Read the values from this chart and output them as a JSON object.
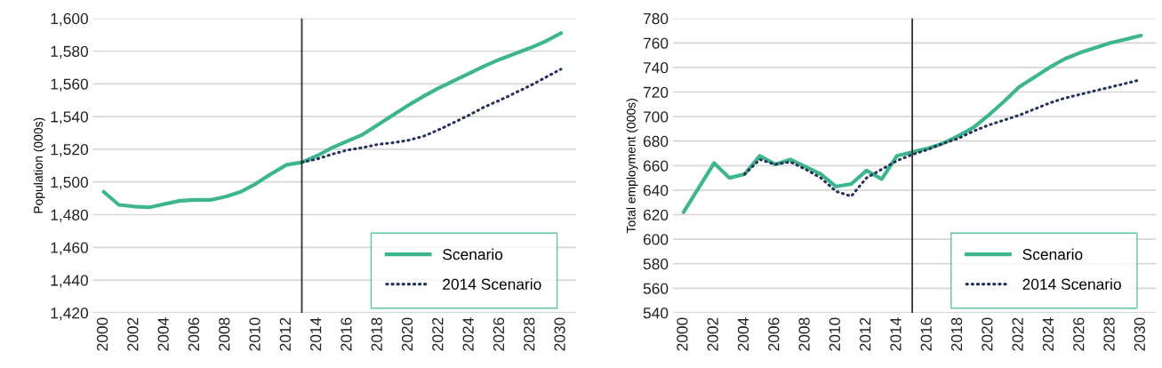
{
  "chart_data": [
    {
      "type": "line",
      "ylabel": "Population (000s)",
      "x": [
        2000,
        2001,
        2002,
        2003,
        2004,
        2005,
        2006,
        2007,
        2008,
        2009,
        2010,
        2011,
        2012,
        2013,
        2014,
        2015,
        2016,
        2017,
        2018,
        2019,
        2020,
        2021,
        2022,
        2023,
        2024,
        2025,
        2026,
        2027,
        2028,
        2029,
        2030
      ],
      "series": [
        {
          "name": "Scenario",
          "color": "#3db58f",
          "line_style": "solid",
          "values": [
            1494,
            1486,
            1485,
            1484.5,
            1486.5,
            1488.5,
            1489,
            1489,
            1491,
            1494,
            1499,
            1505,
            1510.5,
            1512,
            1516,
            1521,
            1525,
            1529,
            1535,
            1541,
            1547,
            1552.5,
            1557.5,
            1562,
            1566.5,
            1571,
            1575,
            1578.5,
            1582,
            1586,
            1591
          ]
        },
        {
          "name": "2014 Scenario",
          "color": "#27345a",
          "line_style": "dotted",
          "values": [
            null,
            null,
            null,
            null,
            null,
            null,
            null,
            null,
            null,
            null,
            null,
            null,
            null,
            1512,
            1514,
            1517,
            1519.5,
            1521,
            1523,
            1524,
            1525.5,
            1528,
            1532,
            1536.5,
            1541,
            1546,
            1550,
            1554.5,
            1559,
            1564,
            1569
          ]
        }
      ],
      "xlim": [
        1999.3,
        2031
      ],
      "xticks": [
        2000,
        2002,
        2004,
        2006,
        2008,
        2010,
        2012,
        2014,
        2016,
        2018,
        2020,
        2022,
        2024,
        2026,
        2028,
        2030
      ],
      "ylim": [
        1420,
        1600
      ],
      "yticks": [
        {
          "value": 1420,
          "label": "1,420"
        },
        {
          "value": 1440,
          "label": "1,440"
        },
        {
          "value": 1460,
          "label": "1,460"
        },
        {
          "value": 1480,
          "label": "1,480"
        },
        {
          "value": 1500,
          "label": "1,500"
        },
        {
          "value": 1520,
          "label": "1,520"
        },
        {
          "value": 1540,
          "label": "1,540"
        },
        {
          "value": 1560,
          "label": "1,560"
        },
        {
          "value": 1580,
          "label": "1,580"
        },
        {
          "value": 1600,
          "label": "1,600"
        }
      ],
      "ref_lines": [
        {
          "axis": "x",
          "value": 2013,
          "label": null,
          "color": "#333333"
        }
      ],
      "grid": "y",
      "legend": "bottom right",
      "marker": "none"
    },
    {
      "type": "line",
      "ylabel": "Total employment (000s)",
      "x": [
        2000,
        2001,
        2002,
        2003,
        2004,
        2005,
        2006,
        2007,
        2008,
        2009,
        2010,
        2011,
        2012,
        2013,
        2014,
        2015,
        2016,
        2017,
        2018,
        2019,
        2020,
        2021,
        2022,
        2023,
        2024,
        2025,
        2026,
        2027,
        2028,
        2029,
        2030
      ],
      "series": [
        {
          "name": "Scenario",
          "color": "#3db58f",
          "line_style": "solid",
          "values": [
            622,
            642,
            662,
            650,
            653,
            668,
            661,
            665,
            659,
            653,
            643,
            645,
            656,
            649,
            668,
            671,
            674,
            678,
            684,
            691,
            701,
            712,
            724,
            732,
            740,
            747,
            752,
            756,
            760,
            763,
            766
          ]
        },
        {
          "name": "2014 Scenario",
          "color": "#27345a",
          "line_style": "dotted",
          "values": [
            null,
            null,
            null,
            null,
            653,
            665,
            661,
            663,
            657,
            650,
            639,
            635,
            650,
            657,
            664,
            669,
            673,
            678,
            682,
            688,
            693,
            697,
            701,
            706,
            711,
            715,
            718,
            721,
            724,
            727,
            730
          ]
        }
      ],
      "xlim": [
        1999.3,
        2031
      ],
      "xticks": [
        2000,
        2002,
        2004,
        2006,
        2008,
        2010,
        2012,
        2014,
        2016,
        2018,
        2020,
        2022,
        2024,
        2026,
        2028,
        2030
      ],
      "ylim": [
        540,
        780
      ],
      "yticks": [
        540,
        560,
        580,
        600,
        620,
        640,
        660,
        680,
        700,
        720,
        740,
        760,
        780
      ],
      "ref_lines": [
        {
          "axis": "x",
          "value": 2015,
          "label": null,
          "color": "#333333"
        }
      ],
      "grid": "y",
      "legend": "bottom right",
      "marker": "none"
    }
  ]
}
